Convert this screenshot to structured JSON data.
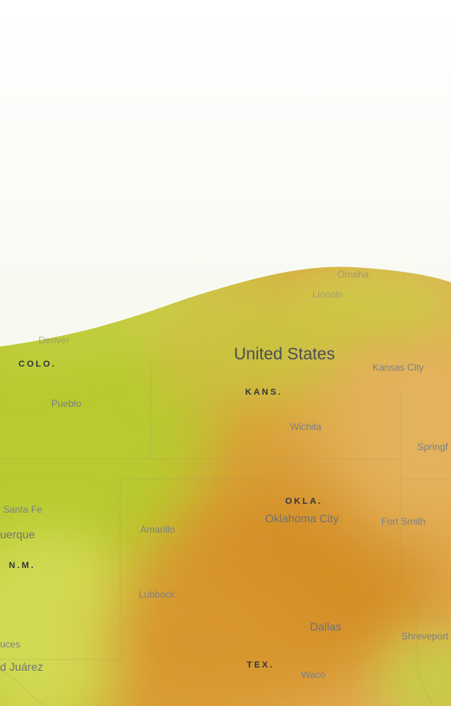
{
  "map": {
    "colors": {
      "sky_top": "#ffffff",
      "sky_bottom": "#eef3df",
      "band_green": "#bccd33",
      "band_light_green": "#d4dc58",
      "band_orange": "#d9962f",
      "band_amber": "#e3b05a",
      "boundary_line": "#a9985b"
    },
    "country_label": "United States",
    "state_labels": {
      "colo": "COLO.",
      "kans": "KANS.",
      "okla": "OKLA.",
      "nm": "N.M.",
      "tex": "TEX."
    },
    "city_labels": {
      "omaha": "Omaha",
      "lincoln": "Lincoln",
      "denver": "Denver",
      "kansas_city": "Kansas City",
      "pueblo": "Pueblo",
      "wichita": "Wichita",
      "springfield": "Springf",
      "santa_fe": "Santa Fe",
      "albuquerque": "uerque",
      "oklahoma_city": "Oklahoma City",
      "fort_smith": "Fort Smith",
      "amarillo": "Amarillo",
      "lubbock": "Lubbock",
      "dallas": "Dallas",
      "shreveport": "Shreveport",
      "las_cruces": "uces",
      "ciudad_juarez": "d Juárez",
      "waco": "Waco"
    }
  }
}
